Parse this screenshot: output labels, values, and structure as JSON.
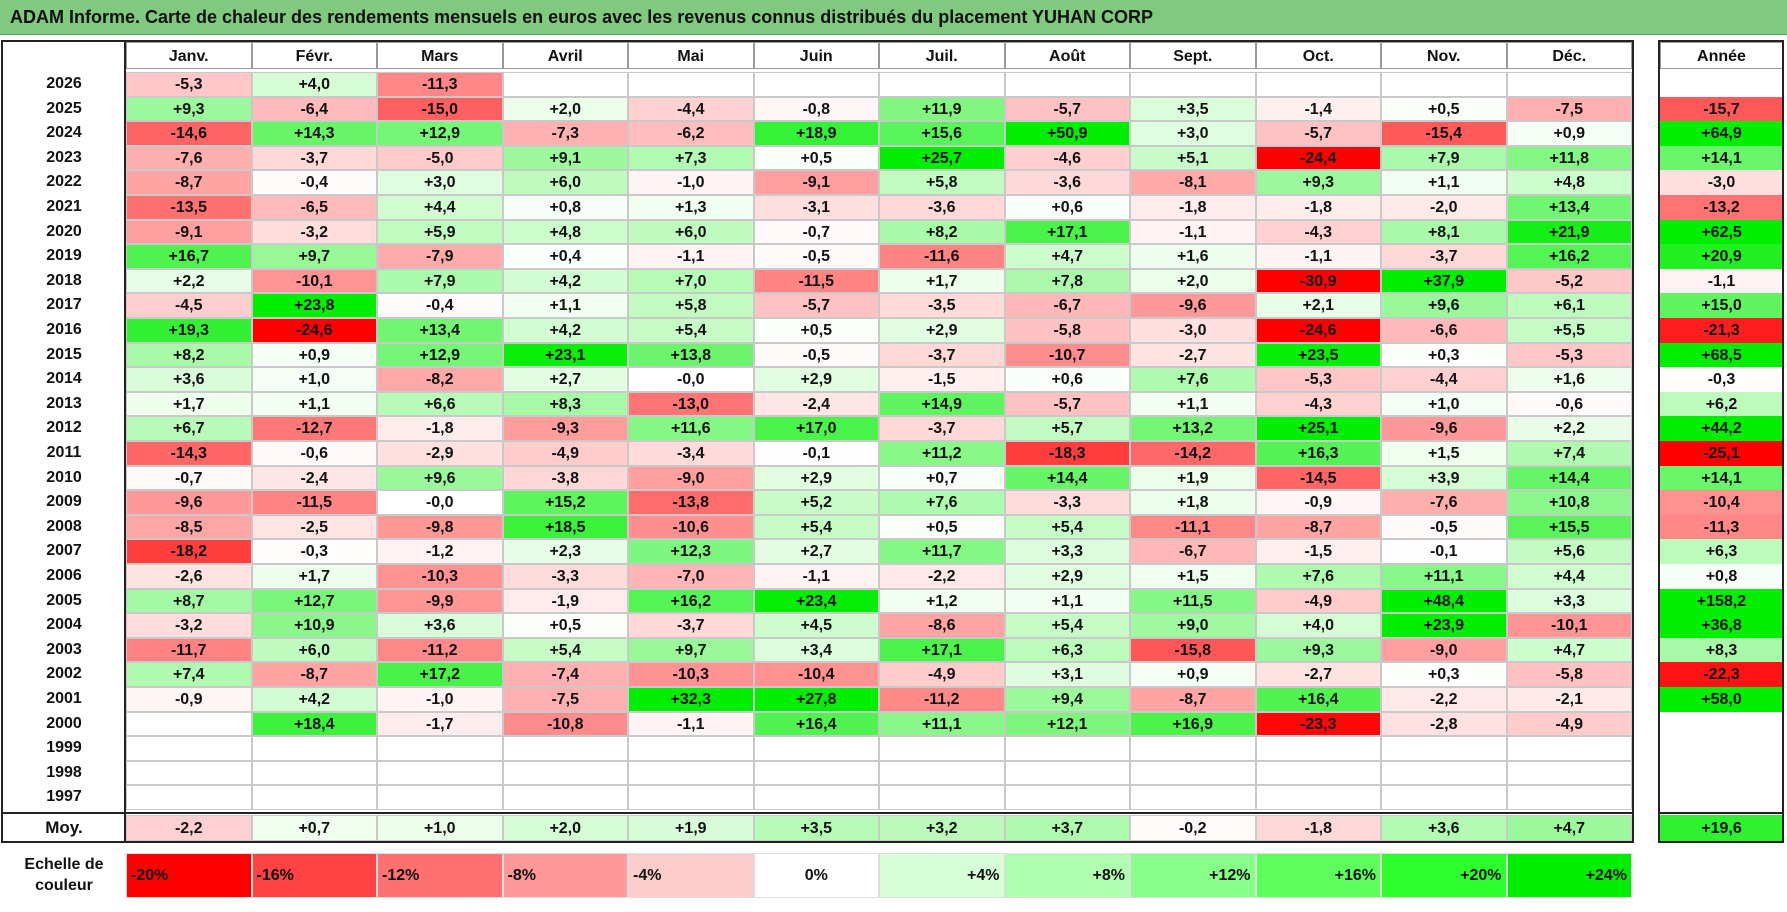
{
  "title": "ADAM Informe. Carte de chaleur des rendements mensuels en euros avec les revenus connus distribués du placement YUHAN CORP",
  "chart_data": {
    "type": "heatmap",
    "title": "ADAM Informe. Carte de chaleur des rendements mensuels en euros avec les revenus connus distribués du placement YUHAN CORP",
    "columns": [
      "Janv.",
      "Févr.",
      "Mars",
      "Avril",
      "Mai",
      "Juin",
      "Juil.",
      "Août",
      "Sept.",
      "Oct.",
      "Nov.",
      "Déc."
    ],
    "annual_header": "Année",
    "rows": [
      {
        "year": "2026",
        "values": [
          "-5,3",
          "+4,0",
          "-11,3",
          "",
          "",
          "",
          "",
          "",
          "",
          "",
          "",
          ""
        ],
        "annual": ""
      },
      {
        "year": "2025",
        "values": [
          "+9,3",
          "-6,4",
          "-15,0",
          "+2,0",
          "-4,4",
          "-0,8",
          "+11,9",
          "-5,7",
          "+3,5",
          "-1,4",
          "+0,5",
          "-7,5"
        ],
        "annual": "-15,7"
      },
      {
        "year": "2024",
        "values": [
          "-14,6",
          "+14,3",
          "+12,9",
          "-7,3",
          "-6,2",
          "+18,9",
          "+15,6",
          "+50,9",
          "+3,0",
          "-5,7",
          "-15,4",
          "+0,9"
        ],
        "annual": "+64,9"
      },
      {
        "year": "2023",
        "values": [
          "-7,6",
          "-3,7",
          "-5,0",
          "+9,1",
          "+7,3",
          "+0,5",
          "+25,7",
          "-4,6",
          "+5,1",
          "-24,4",
          "+7,9",
          "+11,8"
        ],
        "annual": "+14,1"
      },
      {
        "year": "2022",
        "values": [
          "-8,7",
          "-0,4",
          "+3,0",
          "+6,0",
          "-1,0",
          "-9,1",
          "+5,8",
          "-3,6",
          "-8,1",
          "+9,3",
          "+1,1",
          "+4,8"
        ],
        "annual": "-3,0"
      },
      {
        "year": "2021",
        "values": [
          "-13,5",
          "-6,5",
          "+4,4",
          "+0,8",
          "+1,3",
          "-3,1",
          "-3,6",
          "+0,6",
          "-1,8",
          "-1,8",
          "-2,0",
          "+13,4"
        ],
        "annual": "-13,2"
      },
      {
        "year": "2020",
        "values": [
          "-9,1",
          "-3,2",
          "+5,9",
          "+4,8",
          "+6,0",
          "-0,7",
          "+8,2",
          "+17,1",
          "-1,1",
          "-4,3",
          "+8,1",
          "+21,9"
        ],
        "annual": "+62,5"
      },
      {
        "year": "2019",
        "values": [
          "+16,7",
          "+9,7",
          "-7,9",
          "+0,4",
          "-1,1",
          "-0,5",
          "-11,6",
          "+4,7",
          "+1,6",
          "-1,1",
          "-3,7",
          "+16,2"
        ],
        "annual": "+20,9"
      },
      {
        "year": "2018",
        "values": [
          "+2,2",
          "-10,1",
          "+7,9",
          "+4,2",
          "+7,0",
          "-11,5",
          "+1,7",
          "+7,8",
          "+2,0",
          "-30,9",
          "+37,9",
          "-5,2"
        ],
        "annual": "-1,1"
      },
      {
        "year": "2017",
        "values": [
          "-4,5",
          "+23,8",
          "-0,4",
          "+1,1",
          "+5,8",
          "-5,7",
          "-3,5",
          "-6,7",
          "-9,6",
          "+2,1",
          "+9,6",
          "+6,1"
        ],
        "annual": "+15,0"
      },
      {
        "year": "2016",
        "values": [
          "+19,3",
          "-24,6",
          "+13,4",
          "+4,2",
          "+5,4",
          "+0,5",
          "+2,9",
          "-5,8",
          "-3,0",
          "-24,6",
          "-6,6",
          "+5,5"
        ],
        "annual": "-21,3"
      },
      {
        "year": "2015",
        "values": [
          "+8,2",
          "+0,9",
          "+12,9",
          "+23,1",
          "+13,8",
          "-0,5",
          "-3,7",
          "-10,7",
          "-2,7",
          "+23,5",
          "+0,3",
          "-5,3"
        ],
        "annual": "+68,5"
      },
      {
        "year": "2014",
        "values": [
          "+3,6",
          "+1,0",
          "-8,2",
          "+2,7",
          "-0,0",
          "+2,9",
          "-1,5",
          "+0,6",
          "+7,6",
          "-5,3",
          "-4,4",
          "+1,6"
        ],
        "annual": "-0,3"
      },
      {
        "year": "2013",
        "values": [
          "+1,7",
          "+1,1",
          "+6,6",
          "+8,3",
          "-13,0",
          "-2,4",
          "+14,9",
          "-5,7",
          "+1,1",
          "-4,3",
          "+1,0",
          "-0,6"
        ],
        "annual": "+6,2"
      },
      {
        "year": "2012",
        "values": [
          "+6,7",
          "-12,7",
          "-1,8",
          "-9,3",
          "+11,6",
          "+17,0",
          "-3,7",
          "+5,7",
          "+13,2",
          "+25,1",
          "-9,6",
          "+2,2"
        ],
        "annual": "+44,2"
      },
      {
        "year": "2011",
        "values": [
          "-14,3",
          "-0,6",
          "-2,9",
          "-4,9",
          "-3,4",
          "-0,1",
          "+11,2",
          "-18,3",
          "-14,2",
          "+16,3",
          "+1,5",
          "+7,4"
        ],
        "annual": "-25,1"
      },
      {
        "year": "2010",
        "values": [
          "-0,7",
          "-2,4",
          "+9,6",
          "-3,8",
          "-9,0",
          "+2,9",
          "+0,7",
          "+14,4",
          "+1,9",
          "-14,5",
          "+3,9",
          "+14,4"
        ],
        "annual": "+14,1"
      },
      {
        "year": "2009",
        "values": [
          "-9,6",
          "-11,5",
          "-0,0",
          "+15,2",
          "-13,8",
          "+5,2",
          "+7,6",
          "-3,3",
          "+1,8",
          "-0,9",
          "-7,6",
          "+10,8"
        ],
        "annual": "-10,4"
      },
      {
        "year": "2008",
        "values": [
          "-8,5",
          "-2,5",
          "-9,8",
          "+18,5",
          "-10,6",
          "+5,4",
          "+0,5",
          "+5,4",
          "-11,1",
          "-8,7",
          "-0,5",
          "+15,5"
        ],
        "annual": "-11,3"
      },
      {
        "year": "2007",
        "values": [
          "-18,2",
          "-0,3",
          "-1,2",
          "+2,3",
          "+12,3",
          "+2,7",
          "+11,7",
          "+3,3",
          "-6,7",
          "-1,5",
          "-0,1",
          "+5,6"
        ],
        "annual": "+6,3"
      },
      {
        "year": "2006",
        "values": [
          "-2,6",
          "+1,7",
          "-10,3",
          "-3,3",
          "-7,0",
          "-1,1",
          "-2,2",
          "+2,9",
          "+1,5",
          "+7,6",
          "+11,1",
          "+4,4"
        ],
        "annual": "+0,8"
      },
      {
        "year": "2005",
        "values": [
          "+8,7",
          "+12,7",
          "-9,9",
          "-1,9",
          "+16,2",
          "+23,4",
          "+1,2",
          "+1,1",
          "+11,5",
          "-4,9",
          "+48,4",
          "+3,3"
        ],
        "annual": "+158,2"
      },
      {
        "year": "2004",
        "values": [
          "-3,2",
          "+10,9",
          "+3,6",
          "+0,5",
          "-3,7",
          "+4,5",
          "-8,6",
          "+5,4",
          "+9,0",
          "+4,0",
          "+23,9",
          "-10,1"
        ],
        "annual": "+36,8"
      },
      {
        "year": "2003",
        "values": [
          "-11,7",
          "+6,0",
          "-11,2",
          "+5,4",
          "+9,7",
          "+3,4",
          "+17,1",
          "+6,3",
          "-15,8",
          "+9,3",
          "-9,0",
          "+4,7"
        ],
        "annual": "+8,3"
      },
      {
        "year": "2002",
        "values": [
          "+7,4",
          "-8,7",
          "+17,2",
          "-7,4",
          "-10,3",
          "-10,4",
          "-4,9",
          "+3,1",
          "+0,9",
          "-2,7",
          "+0,3",
          "-5,8"
        ],
        "annual": "-22,3"
      },
      {
        "year": "2001",
        "values": [
          "-0,9",
          "+4,2",
          "-1,0",
          "-7,5",
          "+32,3",
          "+27,8",
          "-11,2",
          "+9,4",
          "-8,7",
          "+16,4",
          "-2,2",
          "-2,1"
        ],
        "annual": "+58,0"
      },
      {
        "year": "2000",
        "values": [
          "",
          "+18,4",
          "-1,7",
          "-10,8",
          "-1,1",
          "+16,4",
          "+11,1",
          "+12,1",
          "+16,9",
          "-23,3",
          "-2,8",
          "-4,9"
        ],
        "annual": ""
      },
      {
        "year": "1999",
        "values": [
          "",
          "",
          "",
          "",
          "",
          "",
          "",
          "",
          "",
          "",
          "",
          ""
        ],
        "annual": ""
      },
      {
        "year": "1998",
        "values": [
          "",
          "",
          "",
          "",
          "",
          "",
          "",
          "",
          "",
          "",
          "",
          ""
        ],
        "annual": ""
      },
      {
        "year": "1997",
        "values": [
          "",
          "",
          "",
          "",
          "",
          "",
          "",
          "",
          "",
          "",
          "",
          ""
        ],
        "annual": ""
      }
    ],
    "average": {
      "label": "Moy.",
      "values": [
        "-2,2",
        "+0,7",
        "+1,0",
        "+2,0",
        "+1,9",
        "+3,5",
        "+3,2",
        "+3,7",
        "-0,2",
        "-1,8",
        "+3,6",
        "+4,7"
      ],
      "annual": "+19,6"
    },
    "legend": {
      "title": "Echelle de couleur",
      "stops": [
        {
          "label": "-20%",
          "value": -20,
          "color": "#ff0000"
        },
        {
          "label": "-16%",
          "value": -16,
          "color": "#ff4343"
        },
        {
          "label": "-12%",
          "value": -12,
          "color": "#ff7070"
        },
        {
          "label": "-8%",
          "value": -8,
          "color": "#ff9999"
        },
        {
          "label": "-4%",
          "value": -4,
          "color": "#ffcccc"
        },
        {
          "label": "0%",
          "value": 0,
          "color": "#ffffff"
        },
        {
          "label": "+4%",
          "value": 4,
          "color": "#d6ffd6"
        },
        {
          "label": "+8%",
          "value": 8,
          "color": "#b0ffb0"
        },
        {
          "label": "+12%",
          "value": 12,
          "color": "#88ff88"
        },
        {
          "label": "+16%",
          "value": 16,
          "color": "#5cff5c"
        },
        {
          "label": "+20%",
          "value": 20,
          "color": "#2cff2c"
        },
        {
          "label": "+24%",
          "value": 24,
          "color": "#00ee00"
        }
      ]
    }
  }
}
